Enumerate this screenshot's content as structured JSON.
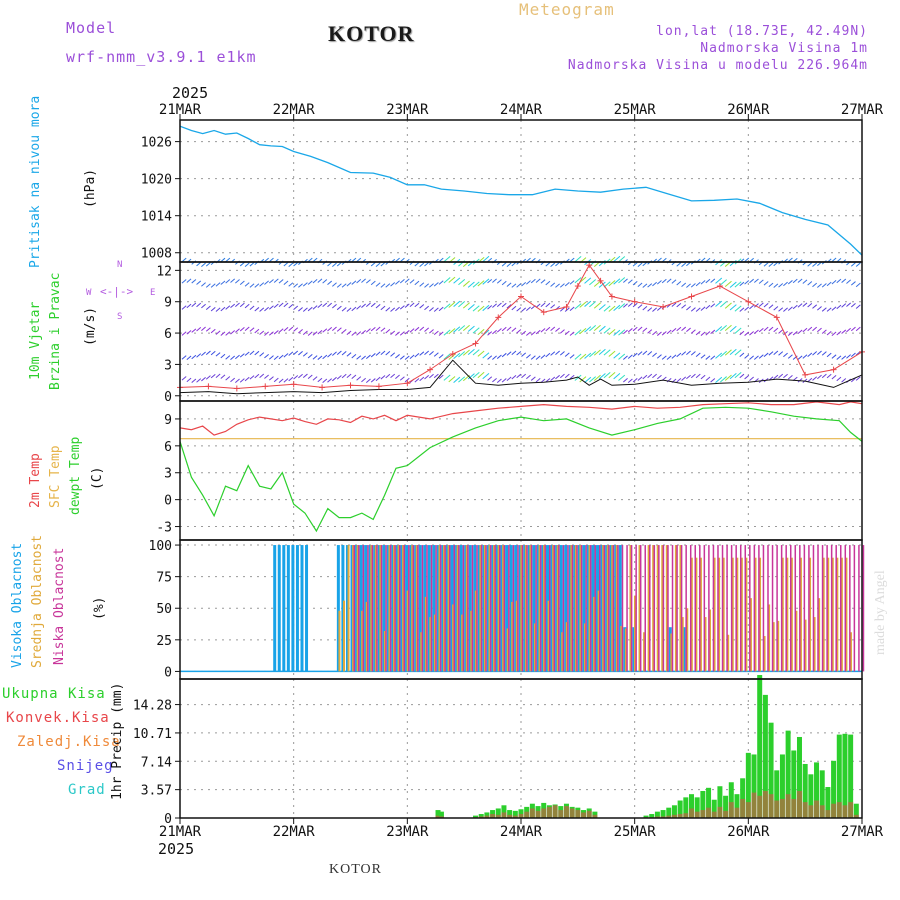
{
  "header": {
    "model_label": "Model",
    "model_name": "wrf-nmm_v3.9.1 e1km",
    "station": "KOTOR",
    "product": "Meteogram",
    "lonlat": "lon,lat (18.73E, 42.49N)",
    "elevation": "Nadmorska Visina 1m",
    "model_elevation": "Nadmorska Visina u modelu 226.964m",
    "year_top": "2025",
    "year_bottom": "2025",
    "footer_station": "KOTOR",
    "credit": "made by Angel"
  },
  "colors": {
    "pressure": "#1aa7e8",
    "temp2m": "#e8464a",
    "sfctemp": "#e6b44a",
    "dewpt": "#2ccf2c",
    "high_cloud": "#18a3e8",
    "mid_cloud": "#e0a93a",
    "low_cloud": "#c8359a",
    "total_precip": "#2ccf2c",
    "conv_precip": "#e8464a",
    "grid": "#9a9a9a"
  },
  "chart_data": [
    {
      "type": "line",
      "panel": "pressure",
      "y_title": "Pritisak na nivou mora",
      "y_unit": "(hPa)",
      "x_ticks": [
        "21MAR",
        "22MAR",
        "23MAR",
        "24MAR",
        "25MAR",
        "26MAR",
        "27MAR"
      ],
      "y_ticks": [
        1008,
        1014,
        1020,
        1026
      ],
      "ylim": [
        1006.5,
        1029.5
      ],
      "x": [
        0,
        0.1,
        0.2,
        0.3,
        0.4,
        0.5,
        0.6,
        0.7,
        0.8,
        0.9,
        1.0,
        1.15,
        1.3,
        1.5,
        1.7,
        1.85,
        2.0,
        2.15,
        2.3,
        2.5,
        2.7,
        2.9,
        3.1,
        3.3,
        3.5,
        3.7,
        3.9,
        4.1,
        4.3,
        4.5,
        4.7,
        4.9,
        5.1,
        5.3,
        5.5,
        5.7,
        5.9,
        6.0
      ],
      "series": [
        {
          "name": "Pritisak na nivou mora",
          "values": [
            1028.5,
            1027.8,
            1027.3,
            1027.8,
            1027.2,
            1027.4,
            1026.5,
            1025.5,
            1025.3,
            1025.2,
            1024.4,
            1023.6,
            1022.6,
            1021.0,
            1020.9,
            1020.2,
            1019.0,
            1019.0,
            1018.3,
            1018.0,
            1017.6,
            1017.4,
            1017.4,
            1018.3,
            1018.0,
            1017.8,
            1018.3,
            1018.6,
            1017.5,
            1016.4,
            1016.5,
            1016.7,
            1016.0,
            1014.5,
            1013.4,
            1012.5,
            1009.4,
            1007.6
          ]
        }
      ]
    },
    {
      "type": "line",
      "panel": "wind",
      "y_title": "10m Vjetar",
      "y_title2": "Brzina i Pravac",
      "y_unit": "(m/s)",
      "compass": {
        "n": "N",
        "s": "S",
        "w": "W",
        "e": "E"
      },
      "y_ticks": [
        0,
        3,
        6,
        9,
        12
      ],
      "ylim": [
        -0.5,
        12.8
      ],
      "barb_levels": [
        1.5,
        3.7,
        6.0,
        8.3,
        10.6,
        12.6
      ],
      "x": [
        0,
        0.25,
        0.5,
        0.75,
        1.0,
        1.25,
        1.5,
        1.75,
        2.0,
        2.2,
        2.4,
        2.6,
        2.8,
        3.0,
        3.2,
        3.4,
        3.5,
        3.6,
        3.7,
        3.8,
        4.0,
        4.25,
        4.5,
        4.75,
        5.0,
        5.25,
        5.5,
        5.75,
        6.0
      ],
      "series": [
        {
          "name": "10m Vjetar",
          "values": [
            0.8,
            0.9,
            0.7,
            0.9,
            1.1,
            0.8,
            1.0,
            0.9,
            1.2,
            2.5,
            4.0,
            5.0,
            7.5,
            9.5,
            8.0,
            8.5,
            10.5,
            12.5,
            11.0,
            9.5,
            9.0,
            8.5,
            9.5,
            10.5,
            9.0,
            7.5,
            2.0,
            2.5,
            4.2
          ]
        },
        {
          "name": "10m Vjetar min",
          "values": [
            0.3,
            0.4,
            0.2,
            0.3,
            0.4,
            0.3,
            0.5,
            0.6,
            0.6,
            0.8,
            3.4,
            1.2,
            1.0,
            1.2,
            1.3,
            1.5,
            1.8,
            1.0,
            1.6,
            1.0,
            1.1,
            1.5,
            1.0,
            1.2,
            1.3,
            1.6,
            1.4,
            0.8,
            2.0
          ]
        }
      ]
    },
    {
      "type": "line",
      "panel": "temperature",
      "y_titles": [
        "2m Temp",
        "SFC Temp",
        "dewpt Temp"
      ],
      "y_unit": "(C)",
      "y_ticks": [
        -3,
        0,
        3,
        6,
        9
      ],
      "ylim": [
        -4.5,
        11.0
      ],
      "x": [
        0,
        0.1,
        0.2,
        0.3,
        0.4,
        0.5,
        0.6,
        0.7,
        0.8,
        0.9,
        1.0,
        1.1,
        1.2,
        1.3,
        1.4,
        1.5,
        1.6,
        1.7,
        1.8,
        1.9,
        2.0,
        2.2,
        2.4,
        2.6,
        2.8,
        3.0,
        3.2,
        3.4,
        3.6,
        3.8,
        4.0,
        4.2,
        4.4,
        4.6,
        4.8,
        5.0,
        5.2,
        5.4,
        5.6,
        5.8,
        5.9,
        6.0
      ],
      "series": [
        {
          "name": "2m Temp",
          "values": [
            8.0,
            7.8,
            8.2,
            7.2,
            7.6,
            8.4,
            8.9,
            9.2,
            9.0,
            8.8,
            9.1,
            8.7,
            8.4,
            9.0,
            8.9,
            8.6,
            9.3,
            9.0,
            9.4,
            8.8,
            9.4,
            9.0,
            9.6,
            9.9,
            10.2,
            10.4,
            10.6,
            10.4,
            10.3,
            10.1,
            10.4,
            10.2,
            10.3,
            10.6,
            10.7,
            10.8,
            10.6,
            10.6,
            10.9,
            10.6,
            10.9,
            10.7
          ]
        },
        {
          "name": "SFC Temp",
          "values": [
            6.8,
            6.8,
            6.8,
            6.8,
            6.8,
            6.8,
            6.8,
            6.8,
            6.8,
            6.8,
            6.8,
            6.8,
            6.8,
            6.8,
            6.8,
            6.8,
            6.8,
            6.8,
            6.8,
            6.8,
            6.8,
            6.8,
            6.8,
            6.8,
            6.8,
            6.8,
            6.8,
            6.8,
            6.8,
            6.8,
            6.8,
            6.8,
            6.8,
            6.8,
            6.8,
            6.8,
            6.8,
            6.8,
            6.8,
            6.8,
            6.8,
            6.8
          ]
        },
        {
          "name": "dewpt Temp",
          "values": [
            6.5,
            2.5,
            0.5,
            -1.8,
            1.5,
            1.0,
            3.8,
            1.5,
            1.2,
            3.0,
            -0.5,
            -1.5,
            -3.5,
            -1.0,
            -2.0,
            -2.0,
            -1.5,
            -2.2,
            0.5,
            3.5,
            3.8,
            5.8,
            7.0,
            8.0,
            8.8,
            9.2,
            8.8,
            9.0,
            8.0,
            7.2,
            7.8,
            8.5,
            9.0,
            10.2,
            10.3,
            10.2,
            9.8,
            9.3,
            9.0,
            8.8,
            7.5,
            6.5
          ]
        }
      ]
    },
    {
      "type": "bar",
      "panel": "cloud",
      "y_titles": [
        "Visoka Oblacnost",
        "Srednja Oblacnost",
        "Niska Oblacnost"
      ],
      "y_unit": "(%)",
      "y_ticks": [
        0,
        25,
        50,
        75,
        100
      ],
      "ylim": [
        -6,
        104
      ],
      "x_range": [
        0,
        6
      ],
      "series": [
        {
          "name": "Visoka Oblacnost",
          "segments": [
            {
              "from": 0.82,
              "to": 1.12,
              "value": 100
            },
            {
              "from": 1.38,
              "to": 3.9,
              "value": 100
            },
            {
              "from": 3.9,
              "to": 5.05,
              "value": 20
            }
          ]
        },
        {
          "name": "Srednja Oblacnost",
          "segments": [
            {
              "from": 1.38,
              "to": 4.4,
              "value": 100
            },
            {
              "from": 4.4,
              "to": 5.9,
              "value": 90
            }
          ]
        },
        {
          "name": "Niska Oblacnost",
          "segments": [
            {
              "from": 1.5,
              "to": 6.0,
              "value": 100
            }
          ]
        }
      ]
    },
    {
      "type": "bar",
      "panel": "precipitation",
      "y_titles": [
        "Ukupna Kisa",
        "Konvek.Kisa",
        "Zaledj.Kisa",
        "Snijeg",
        "Grad"
      ],
      "y_unit": "1hr Precip (mm)",
      "y_ticks": [
        0,
        3.57,
        7.14,
        10.71,
        14.28
      ],
      "ylim": [
        0,
        17.5
      ],
      "x": [
        2.27,
        2.3,
        2.6,
        2.65,
        2.7,
        2.75,
        2.8,
        2.85,
        2.9,
        2.95,
        3.0,
        3.05,
        3.1,
        3.15,
        3.2,
        3.25,
        3.3,
        3.35,
        3.4,
        3.45,
        3.5,
        3.55,
        3.6,
        3.65,
        4.1,
        4.15,
        4.2,
        4.25,
        4.3,
        4.35,
        4.4,
        4.45,
        4.5,
        4.55,
        4.6,
        4.65,
        4.7,
        4.75,
        4.8,
        4.85,
        4.9,
        4.95,
        5.0,
        5.05,
        5.1,
        5.15,
        5.2,
        5.25,
        5.3,
        5.35,
        5.4,
        5.45,
        5.5,
        5.55,
        5.6,
        5.65,
        5.7,
        5.75,
        5.8,
        5.85,
        5.9,
        5.95
      ],
      "series": [
        {
          "name": "Ukupna Kisa",
          "values": [
            1.0,
            0.8,
            0.3,
            0.5,
            0.7,
            1.0,
            1.2,
            1.6,
            1.0,
            0.9,
            1.1,
            1.4,
            1.8,
            1.5,
            1.9,
            1.6,
            1.7,
            1.5,
            1.8,
            1.4,
            1.3,
            1.0,
            1.2,
            0.8,
            0.3,
            0.5,
            0.8,
            1.0,
            1.3,
            1.6,
            2.2,
            2.6,
            3.0,
            2.6,
            3.4,
            3.8,
            2.3,
            4.0,
            2.8,
            4.5,
            3.0,
            5.0,
            8.2,
            8.0,
            18.0,
            15.5,
            12.0,
            6.0,
            8.0,
            11.0,
            8.5,
            10.2,
            6.8,
            5.5,
            7.0,
            6.0,
            3.9,
            7.2,
            10.5,
            10.6,
            10.5,
            1.8
          ]
        },
        {
          "name": "Konvek.Kisa",
          "values": [
            0.3,
            0.2,
            0.1,
            0.2,
            0.3,
            0.5,
            0.4,
            0.7,
            0.4,
            0.3,
            0.5,
            0.8,
            1.2,
            0.9,
            1.2,
            1.4,
            1.6,
            1.0,
            1.5,
            1.2,
            1.0,
            0.7,
            0.9,
            0.4,
            0.1,
            0.1,
            0.2,
            0.2,
            0.3,
            0.4,
            0.5,
            0.6,
            1.2,
            0.8,
            1.0,
            1.3,
            0.8,
            1.4,
            0.9,
            2.0,
            1.3,
            2.4,
            2.0,
            3.2,
            2.8,
            3.4,
            3.0,
            2.2,
            2.4,
            3.0,
            2.4,
            3.4,
            2.0,
            1.6,
            2.2,
            1.6,
            1.0,
            1.8,
            2.0,
            1.6,
            2.0,
            0.4
          ]
        }
      ]
    }
  ]
}
